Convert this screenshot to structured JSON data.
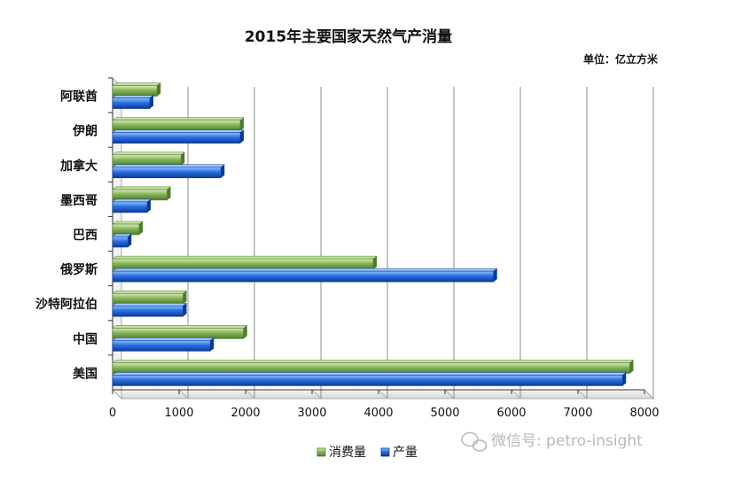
{
  "chart_data": {
    "type": "bar",
    "orientation": "horizontal",
    "title": "2015年主要国家天然气产消量",
    "unit_note": "单位：亿立方米",
    "categories": [
      "美国",
      "中国",
      "沙特阿拉伯",
      "俄罗斯",
      "巴西",
      "墨西哥",
      "加拿大",
      "伊朗",
      "阿联酋"
    ],
    "series": [
      {
        "name": "消费量",
        "color": "#7fae4f",
        "values": [
          7780,
          1970,
          1060,
          3920,
          400,
          820,
          1030,
          1920,
          670
        ]
      },
      {
        "name": "产量",
        "color": "#1f5fc8",
        "values": [
          7670,
          1470,
          1060,
          5730,
          230,
          520,
          1630,
          1920,
          560
        ]
      }
    ],
    "xlim": [
      0,
      8000
    ],
    "xticks": [
      "0",
      "1000",
      "2000",
      "3000",
      "4000",
      "5000",
      "6000",
      "7000",
      "8000"
    ],
    "grid": true,
    "legend_position": "bottom"
  },
  "watermark": {
    "text": "微信号: petro-insight",
    "icon": "wechat-icon"
  }
}
